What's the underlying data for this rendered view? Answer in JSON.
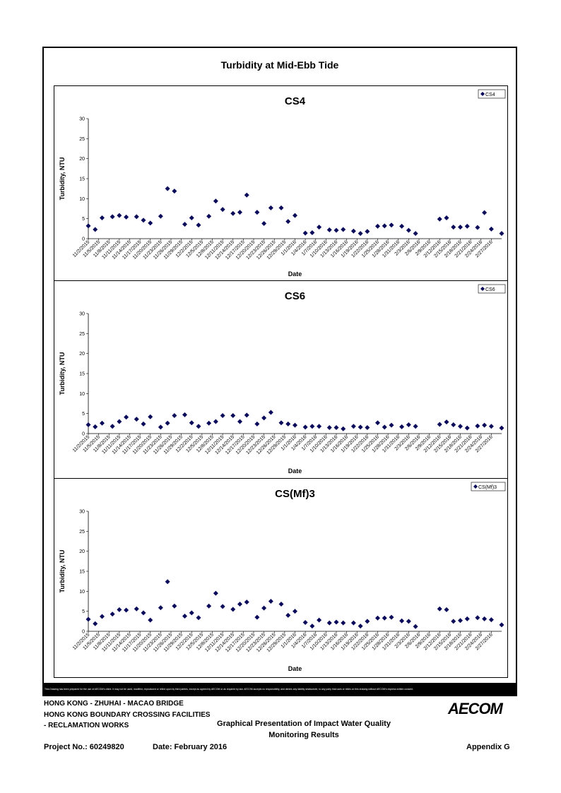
{
  "main_title": "Turbidity at Mid-Ebb Tide",
  "chart_data": [
    {
      "type": "scatter",
      "title": "CS4",
      "xlabel": "Date",
      "ylabel": "Turbidity, NTU",
      "ylim": [
        0,
        30
      ],
      "yticks": [
        0,
        5,
        10,
        15,
        20,
        25,
        30
      ],
      "xlim": [
        "11/2/2015",
        "3/1/2016"
      ],
      "xtick_labels": [
        "11/2/2015",
        "11/5/2015",
        "11/8/2015",
        "11/11/2015",
        "11/14/2015",
        "11/17/2015",
        "11/20/2015",
        "11/23/2015",
        "11/26/2015",
        "11/29/2015",
        "12/2/2015",
        "12/5/2015",
        "12/8/2015",
        "12/11/2015",
        "12/14/2015",
        "12/17/2015",
        "12/20/2015",
        "12/23/2015",
        "12/26/2015",
        "12/29/2015",
        "1/1/2016",
        "1/4/2016",
        "1/7/2016",
        "1/10/2016",
        "1/13/2016",
        "1/16/2016",
        "1/19/2016",
        "1/22/2016",
        "1/25/2016",
        "1/28/2016",
        "1/31/2016",
        "2/3/2016",
        "2/6/2016",
        "2/9/2016",
        "2/12/2016",
        "2/15/2016",
        "2/18/2016",
        "2/21/2016",
        "2/24/2016",
        "2/27/2016"
      ],
      "legend": "CS4",
      "legend_position": "top-right",
      "marker": "diamond",
      "color": "#0a0a5a",
      "series": [
        {
          "name": "CS4",
          "points": [
            [
              "11/2/2015",
              3.2
            ],
            [
              "11/4/2015",
              2.3
            ],
            [
              "11/6/2015",
              5.2
            ],
            [
              "11/9/2015",
              5.5
            ],
            [
              "11/11/2015",
              5.8
            ],
            [
              "11/13/2015",
              5.4
            ],
            [
              "11/16/2015",
              5.5
            ],
            [
              "11/18/2015",
              4.6
            ],
            [
              "11/20/2015",
              3.9
            ],
            [
              "11/23/2015",
              5.6
            ],
            [
              "11/25/2015",
              12.5
            ],
            [
              "11/27/2015",
              11.9
            ],
            [
              "11/30/2015",
              3.6
            ],
            [
              "12/2/2015",
              5.2
            ],
            [
              "12/4/2015",
              3.4
            ],
            [
              "12/7/2015",
              5.6
            ],
            [
              "12/9/2015",
              9.4
            ],
            [
              "12/11/2015",
              7.3
            ],
            [
              "12/14/2015",
              6.3
            ],
            [
              "12/16/2015",
              6.6
            ],
            [
              "12/18/2015",
              10.9
            ],
            [
              "12/21/2015",
              6.6
            ],
            [
              "12/23/2015",
              3.8
            ],
            [
              "12/25/2015",
              7.7
            ],
            [
              "12/28/2015",
              7.7
            ],
            [
              "12/30/2015",
              4.3
            ],
            [
              "1/1/2016",
              5.8
            ],
            [
              "1/4/2016",
              1.4
            ],
            [
              "1/6/2016",
              1.5
            ],
            [
              "1/8/2016",
              2.9
            ],
            [
              "1/11/2016",
              2.2
            ],
            [
              "1/13/2016",
              2.1
            ],
            [
              "1/15/2016",
              2.3
            ],
            [
              "1/18/2016",
              1.9
            ],
            [
              "1/20/2016",
              1.3
            ],
            [
              "1/22/2016",
              1.8
            ],
            [
              "1/25/2016",
              3.1
            ],
            [
              "1/27/2016",
              3.2
            ],
            [
              "1/29/2016",
              3.4
            ],
            [
              "2/1/2016",
              3.1
            ],
            [
              "2/3/2016",
              2.1
            ],
            [
              "2/5/2016",
              1.3
            ],
            [
              "2/12/2016",
              4.9
            ],
            [
              "2/14/2016",
              5.2
            ],
            [
              "2/16/2016",
              2.9
            ],
            [
              "2/18/2016",
              2.9
            ],
            [
              "2/20/2016",
              3.1
            ],
            [
              "2/23/2016",
              2.8
            ],
            [
              "2/25/2016",
              6.5
            ],
            [
              "2/27/2016",
              2.4
            ],
            [
              "3/1/2016",
              1.3
            ]
          ]
        }
      ]
    },
    {
      "type": "scatter",
      "title": "CS6",
      "xlabel": "Date",
      "ylabel": "Turbidity, NTU",
      "ylim": [
        0,
        30
      ],
      "yticks": [
        0,
        5,
        10,
        15,
        20,
        25,
        30
      ],
      "xlim": [
        "11/2/2015",
        "3/1/2016"
      ],
      "xtick_labels": [
        "11/2/2015",
        "11/5/2015",
        "11/8/2015",
        "11/11/2015",
        "11/14/2015",
        "11/17/2015",
        "11/20/2015",
        "11/23/2015",
        "11/26/2015",
        "11/29/2015",
        "12/2/2015",
        "12/5/2015",
        "12/8/2015",
        "12/11/2015",
        "12/14/2015",
        "12/17/2015",
        "12/20/2015",
        "12/23/2015",
        "12/26/2015",
        "12/29/2015",
        "1/1/2016",
        "1/4/2016",
        "1/7/2016",
        "1/10/2016",
        "1/13/2016",
        "1/16/2016",
        "1/19/2016",
        "1/22/2016",
        "1/25/2016",
        "1/28/2016",
        "1/31/2016",
        "2/3/2016",
        "2/6/2016",
        "2/9/2016",
        "2/12/2016",
        "2/15/2016",
        "2/18/2016",
        "2/21/2016",
        "2/24/2016",
        "2/27/2016"
      ],
      "legend": "CS6",
      "legend_position": "top-right",
      "marker": "diamond",
      "color": "#0a0a5a",
      "series": [
        {
          "name": "CS6",
          "points": [
            [
              "11/2/2015",
              2.2
            ],
            [
              "11/4/2015",
              1.7
            ],
            [
              "11/6/2015",
              2.6
            ],
            [
              "11/9/2015",
              1.8
            ],
            [
              "11/11/2015",
              3.0
            ],
            [
              "11/13/2015",
              4.1
            ],
            [
              "11/16/2015",
              3.6
            ],
            [
              "11/18/2015",
              2.4
            ],
            [
              "11/20/2015",
              4.2
            ],
            [
              "11/23/2015",
              1.6
            ],
            [
              "11/25/2015",
              2.6
            ],
            [
              "11/27/2015",
              4.5
            ],
            [
              "11/30/2015",
              4.7
            ],
            [
              "12/2/2015",
              2.7
            ],
            [
              "12/4/2015",
              1.8
            ],
            [
              "12/7/2015",
              2.6
            ],
            [
              "12/9/2015",
              3.0
            ],
            [
              "12/11/2015",
              4.5
            ],
            [
              "12/14/2015",
              4.5
            ],
            [
              "12/16/2015",
              3.0
            ],
            [
              "12/18/2015",
              4.6
            ],
            [
              "12/21/2015",
              2.4
            ],
            [
              "12/23/2015",
              3.9
            ],
            [
              "12/25/2015",
              5.3
            ],
            [
              "12/28/2015",
              2.7
            ],
            [
              "12/30/2015",
              2.4
            ],
            [
              "1/1/2016",
              2.1
            ],
            [
              "1/4/2016",
              1.6
            ],
            [
              "1/6/2016",
              1.8
            ],
            [
              "1/8/2016",
              1.8
            ],
            [
              "1/11/2016",
              1.5
            ],
            [
              "1/13/2016",
              1.5
            ],
            [
              "1/15/2016",
              1.2
            ],
            [
              "1/18/2016",
              1.8
            ],
            [
              "1/20/2016",
              1.6
            ],
            [
              "1/22/2016",
              1.5
            ],
            [
              "1/25/2016",
              2.7
            ],
            [
              "1/27/2016",
              1.6
            ],
            [
              "1/29/2016",
              2.1
            ],
            [
              "2/1/2016",
              1.7
            ],
            [
              "2/3/2016",
              2.2
            ],
            [
              "2/5/2016",
              1.8
            ],
            [
              "2/12/2016",
              2.3
            ],
            [
              "2/14/2016",
              2.9
            ],
            [
              "2/16/2016",
              2.2
            ],
            [
              "2/18/2016",
              1.8
            ],
            [
              "2/20/2016",
              1.4
            ],
            [
              "2/23/2016",
              1.9
            ],
            [
              "2/25/2016",
              2.1
            ],
            [
              "2/27/2016",
              1.8
            ],
            [
              "3/1/2016",
              1.4
            ]
          ]
        }
      ]
    },
    {
      "type": "scatter",
      "title": "CS(Mf)3",
      "xlabel": "Date",
      "ylabel": "Turbidity, NTU",
      "ylim": [
        0,
        30
      ],
      "yticks": [
        0,
        5,
        10,
        15,
        20,
        25,
        30
      ],
      "xlim": [
        "11/2/2015",
        "3/1/2016"
      ],
      "xtick_labels": [
        "11/2/2015",
        "11/5/2015",
        "11/8/2015",
        "11/11/2015",
        "11/14/2015",
        "11/17/2015",
        "11/20/2015",
        "11/23/2015",
        "11/26/2015",
        "11/29/2015",
        "12/2/2015",
        "12/5/2015",
        "12/8/2015",
        "12/11/2015",
        "12/14/2015",
        "12/17/2015",
        "12/20/2015",
        "12/23/2015",
        "12/26/2015",
        "12/29/2015",
        "1/1/2016",
        "1/4/2016",
        "1/7/2016",
        "1/10/2016",
        "1/13/2016",
        "1/16/2016",
        "1/19/2016",
        "1/22/2016",
        "1/25/2016",
        "1/28/2016",
        "1/31/2016",
        "2/3/2016",
        "2/6/2016",
        "2/9/2016",
        "2/12/2016",
        "2/15/2016",
        "2/18/2016",
        "2/21/2016",
        "2/24/2016",
        "2/27/2016"
      ],
      "legend": "CS(Mf)3",
      "legend_position": "top-right",
      "marker": "diamond",
      "color": "#0a0a5a",
      "series": [
        {
          "name": "CS(Mf)3",
          "points": [
            [
              "11/2/2015",
              3.0
            ],
            [
              "11/4/2015",
              1.9
            ],
            [
              "11/6/2015",
              3.7
            ],
            [
              "11/9/2015",
              4.3
            ],
            [
              "11/11/2015",
              5.4
            ],
            [
              "11/13/2015",
              5.3
            ],
            [
              "11/16/2015",
              5.6
            ],
            [
              "11/18/2015",
              4.6
            ],
            [
              "11/20/2015",
              2.8
            ],
            [
              "11/23/2015",
              5.9
            ],
            [
              "11/25/2015",
              12.4
            ],
            [
              "11/27/2015",
              6.3
            ],
            [
              "11/30/2015",
              3.8
            ],
            [
              "12/2/2015",
              4.6
            ],
            [
              "12/4/2015",
              3.4
            ],
            [
              "12/7/2015",
              6.3
            ],
            [
              "12/9/2015",
              9.5
            ],
            [
              "12/11/2015",
              6.2
            ],
            [
              "12/14/2015",
              5.5
            ],
            [
              "12/16/2015",
              6.8
            ],
            [
              "12/18/2015",
              7.3
            ],
            [
              "12/21/2015",
              3.5
            ],
            [
              "12/23/2015",
              5.8
            ],
            [
              "12/25/2015",
              7.5
            ],
            [
              "12/28/2015",
              6.8
            ],
            [
              "12/30/2015",
              4.0
            ],
            [
              "1/1/2016",
              5.0
            ],
            [
              "1/4/2016",
              2.2
            ],
            [
              "1/6/2016",
              1.3
            ],
            [
              "1/8/2016",
              2.8
            ],
            [
              "1/11/2016",
              2.1
            ],
            [
              "1/13/2016",
              2.3
            ],
            [
              "1/15/2016",
              2.1
            ],
            [
              "1/18/2016",
              2.1
            ],
            [
              "1/20/2016",
              1.3
            ],
            [
              "1/22/2016",
              2.5
            ],
            [
              "1/25/2016",
              3.3
            ],
            [
              "1/27/2016",
              3.3
            ],
            [
              "1/29/2016",
              3.5
            ],
            [
              "2/1/2016",
              2.6
            ],
            [
              "2/3/2016",
              2.5
            ],
            [
              "2/5/2016",
              1.2
            ],
            [
              "2/12/2016",
              5.6
            ],
            [
              "2/14/2016",
              5.4
            ],
            [
              "2/16/2016",
              2.5
            ],
            [
              "2/18/2016",
              2.7
            ],
            [
              "2/20/2016",
              3.1
            ],
            [
              "2/23/2016",
              3.4
            ],
            [
              "2/25/2016",
              3.1
            ],
            [
              "2/27/2016",
              2.9
            ],
            [
              "3/1/2016",
              1.6
            ]
          ]
        }
      ]
    }
  ],
  "disclaimer": "This Drawing has been prepared for the use of AECOM's client. It may not be used, modified, reproduced or relied upon by third parties, except as agreed by AECOM or as required by law. AECOM accepts no responsibility, and denies any liability whatsoever, to any party that uses or relies on this drawing without AECOM's express written consent.",
  "footer": {
    "line1": "HONG KONG - ZHUHAI - MACAO BRIDGE",
    "line2": "HONG KONG BOUNDARY CROSSING FACILITIES",
    "line3": "- RECLAMATION WORKS",
    "title_line1": "Graphical Presentation of Impact Water Quality",
    "title_line2": "Monitoring Results",
    "project_no": "Project No.: 60249820",
    "date": "Date: February 2016",
    "appendix": "Appendix G",
    "logo_text": "AECOM"
  }
}
